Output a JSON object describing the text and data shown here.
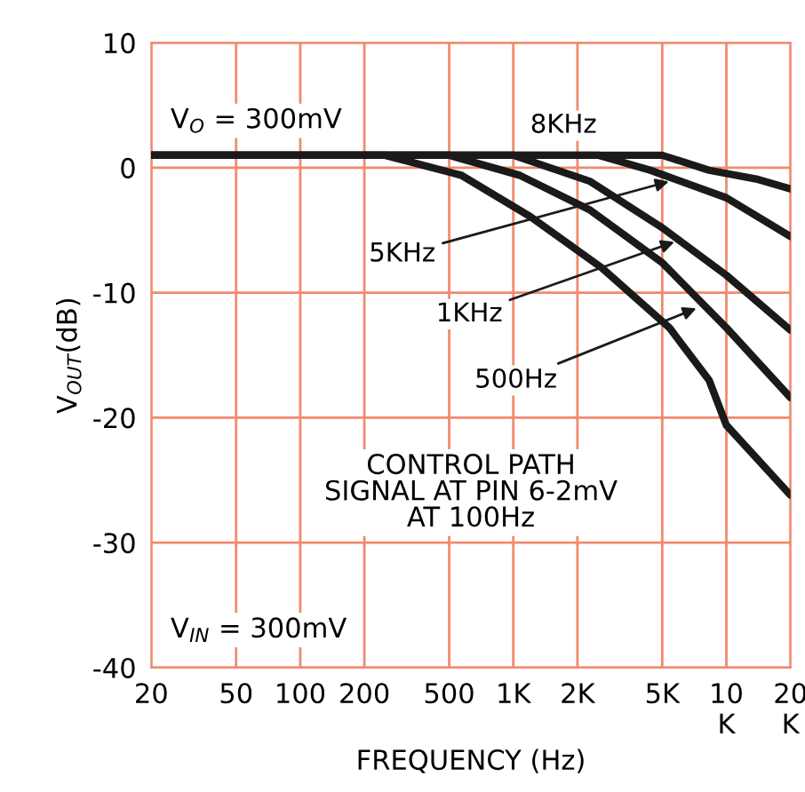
{
  "chart_data": {
    "type": "line",
    "xlabel": "FREQUENCY (Hz)",
    "ylabel": "V$_{OUT}$(dB)",
    "log": "x",
    "grid": true,
    "xlim": [
      20,
      20000
    ],
    "xticks": [
      20,
      50,
      100,
      200,
      500,
      {
        "value": 1000,
        "label": "1K"
      },
      {
        "value": 2000,
        "label": "2K"
      },
      {
        "value": 5000,
        "label": "5K"
      },
      {
        "value": 10000,
        "label": "10\nK"
      },
      {
        "value": 20000,
        "label": "20\nK"
      }
    ],
    "ylim": [
      -40,
      10
    ],
    "yticks": [
      -40,
      -30,
      -20,
      -10,
      0,
      10
    ],
    "series": [
      {
        "color": "#1a1a1a",
        "x": [
          20,
          5000,
          8300,
          13800,
          20000
        ],
        "values": [
          1,
          1,
          -0.2,
          -0.9,
          -1.7
        ]
      },
      {
        "color": "#1a1a1a",
        "x": [
          20,
          2500,
          4400,
          10000,
          20000
        ],
        "values": [
          1,
          1,
          -0.2,
          -2.4,
          -5.5
        ]
      },
      {
        "color": "#1a1a1a",
        "x": [
          20,
          1000,
          2300,
          5000,
          10000,
          20000
        ],
        "values": [
          1,
          1,
          -1.1,
          -4.8,
          -8.6,
          -13
        ]
      },
      {
        "color": "#1a1a1a",
        "x": [
          20,
          500,
          1070,
          2300,
          5000,
          10000,
          20000
        ],
        "values": [
          1,
          1,
          -0.6,
          -3.4,
          -7.6,
          -12.8,
          -18.4
        ]
      },
      {
        "color": "#1a1a1a",
        "x": [
          20,
          250,
          570,
          1200,
          2600,
          5400,
          8300,
          10000,
          20000
        ],
        "values": [
          1,
          1,
          -0.6,
          -3.9,
          -8,
          -12.8,
          -17,
          -20.6,
          -26.2
        ]
      }
    ],
    "annotations": [
      {
        "text": "8KHz",
        "x": 5000,
        "y": 1
      },
      {
        "text": "5KHz",
        "x": 5660,
        "y": -1.0
      },
      {
        "text": "1KHz",
        "x": 6000,
        "y": -5.8
      },
      {
        "text": "500Hz",
        "x": 7600,
        "y": -11.1
      },
      "V$_{O}$ = 300mV",
      "CONTROL PATH\nSIGNAL AT PIN 6-2mV\nAT 100Hz",
      "V$_{IN}$ = 300mV"
    ]
  }
}
